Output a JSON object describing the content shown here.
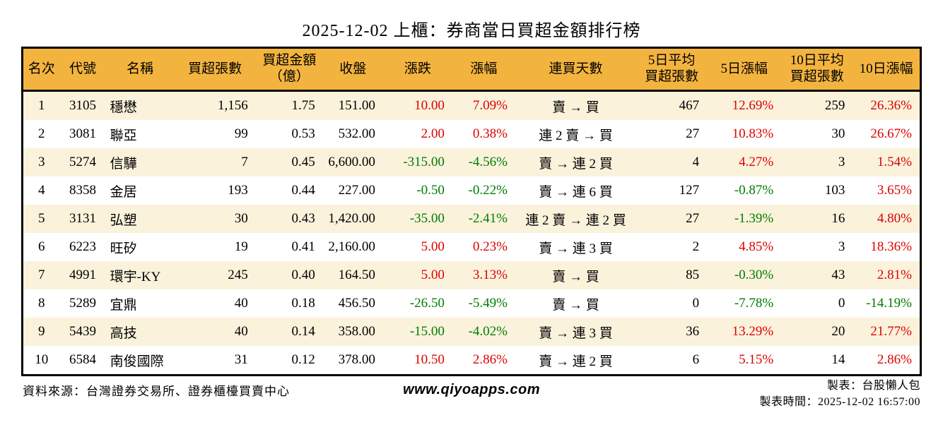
{
  "chart_data": {
    "type": "table",
    "title": "2025-12-02 上櫃：券商當日買超金額排行榜",
    "colors": {
      "up": "#dd0000",
      "down": "#007c00",
      "header_bg": "#f3b43f",
      "row_alt_bg": "#fbf2dc",
      "border": "#000000"
    },
    "columns": [
      {
        "key": "rank",
        "label_lines": [
          "名次"
        ],
        "align": "ac"
      },
      {
        "key": "code",
        "label_lines": [
          "代號"
        ],
        "align": "ac"
      },
      {
        "key": "name",
        "label_lines": [
          "名稱"
        ],
        "align": "al"
      },
      {
        "key": "buy-volume",
        "label_lines": [
          "買超張數"
        ],
        "align": "ar"
      },
      {
        "key": "buy-amount",
        "label_lines": [
          "買超金額",
          "（億）"
        ],
        "align": "ar"
      },
      {
        "key": "close",
        "label_lines": [
          "收盤"
        ],
        "align": "ar"
      },
      {
        "key": "change",
        "label_lines": [
          "漲跌"
        ],
        "align": "ar"
      },
      {
        "key": "change-pct",
        "label_lines": [
          "漲幅"
        ],
        "align": "ar"
      },
      {
        "key": "streak",
        "label_lines": [
          "連買天數"
        ],
        "align": "ac"
      },
      {
        "key": "avg5-volume",
        "label_lines": [
          "5日平均",
          "買超張數"
        ],
        "align": "ar"
      },
      {
        "key": "change5-pct",
        "label_lines": [
          "5日漲幅"
        ],
        "align": "ar"
      },
      {
        "key": "avg10-volume",
        "label_lines": [
          "10日平均",
          "買超張數"
        ],
        "align": "ar"
      },
      {
        "key": "change10-pct",
        "label_lines": [
          "10日漲幅"
        ],
        "align": "ar"
      }
    ],
    "colored_column_indexes": [
      6,
      7,
      10,
      12
    ],
    "rows": [
      [
        "1",
        "3105",
        "穩懋",
        "1,156",
        "1.75",
        "151.00",
        "10.00",
        "7.09%",
        "賣 → 買",
        "467",
        "12.69%",
        "259",
        "26.36%"
      ],
      [
        "2",
        "3081",
        "聯亞",
        "99",
        "0.53",
        "532.00",
        "2.00",
        "0.38%",
        "連 2 賣 → 買",
        "27",
        "10.83%",
        "30",
        "26.67%"
      ],
      [
        "3",
        "5274",
        "信驊",
        "7",
        "0.45",
        "6,600.00",
        "-315.00",
        "-4.56%",
        "賣 → 連 2 買",
        "4",
        "4.27%",
        "3",
        "1.54%"
      ],
      [
        "4",
        "8358",
        "金居",
        "193",
        "0.44",
        "227.00",
        "-0.50",
        "-0.22%",
        "賣 → 連 6 買",
        "127",
        "-0.87%",
        "103",
        "3.65%"
      ],
      [
        "5",
        "3131",
        "弘塑",
        "30",
        "0.43",
        "1,420.00",
        "-35.00",
        "-2.41%",
        "連 2 賣 → 連 2 買",
        "27",
        "-1.39%",
        "16",
        "4.80%"
      ],
      [
        "6",
        "6223",
        "旺矽",
        "19",
        "0.41",
        "2,160.00",
        "5.00",
        "0.23%",
        "賣 → 連 3 買",
        "2",
        "4.85%",
        "3",
        "18.36%"
      ],
      [
        "7",
        "4991",
        "環宇-KY",
        "245",
        "0.40",
        "164.50",
        "5.00",
        "3.13%",
        "賣 → 買",
        "85",
        "-0.30%",
        "43",
        "2.81%"
      ],
      [
        "8",
        "5289",
        "宜鼎",
        "40",
        "0.18",
        "456.50",
        "-26.50",
        "-5.49%",
        "賣 → 買",
        "0",
        "-7.78%",
        "0",
        "-14.19%"
      ],
      [
        "9",
        "5439",
        "高技",
        "40",
        "0.14",
        "358.00",
        "-15.00",
        "-4.02%",
        "賣 → 連 3 買",
        "36",
        "13.29%",
        "20",
        "21.77%"
      ],
      [
        "10",
        "6584",
        "南俊國際",
        "31",
        "0.12",
        "378.00",
        "10.50",
        "2.86%",
        "賣 → 連 2 買",
        "6",
        "5.15%",
        "14",
        "2.86%"
      ]
    ]
  },
  "footer": {
    "source": "資料來源：台灣證券交易所、證券櫃檯買賣中心",
    "website": "www.qiyoapps.com",
    "author": "製表：台股懶人包",
    "generated": "製表時間：2025-12-02 16:57:00"
  }
}
